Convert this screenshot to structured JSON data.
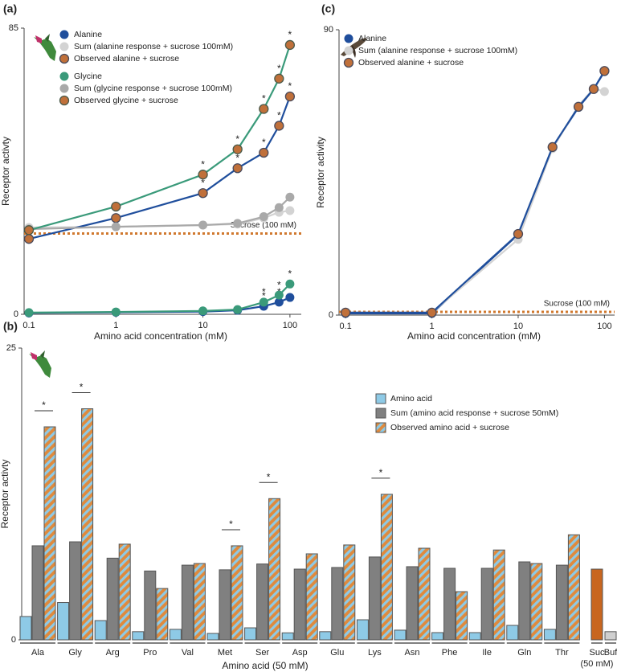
{
  "chart_data": [
    {
      "type": "line",
      "panel_label": "(a)",
      "x_label": "Amino acid concentration (mM)",
      "y_label": "Receptor activty",
      "xscale": "log",
      "xlim": [
        0.088,
        135
      ],
      "xticks": [
        0.1,
        1,
        10,
        100
      ],
      "ylim": [
        0,
        85
      ],
      "yticks": [
        0,
        85
      ],
      "x": [
        0.1,
        1,
        10,
        25,
        50,
        75,
        100
      ],
      "reference": {
        "value": 24,
        "label": "Sucrose (100 mM)",
        "color": "#d0782e"
      },
      "series": [
        {
          "name": "Alanine",
          "color": "#1f4e9c",
          "marker_color": "#1f4e9c",
          "values": [
            0.4,
            0.6,
            0.8,
            1.2,
            2.4,
            3.6,
            5.0
          ],
          "significance": [
            null,
            null,
            null,
            null,
            "*",
            "*",
            "*"
          ]
        },
        {
          "name": "Sum (alanine response + sucrose 100mM)",
          "color": "#d3d3d3",
          "marker_color": "#d3d3d3",
          "values": [
            25.8,
            26,
            26.5,
            26.8,
            28.6,
            30.3,
            30.8
          ]
        },
        {
          "name": "Observed alanine + sucrose",
          "color": "#1f4e9c",
          "marker_color": "#c0703a",
          "marker_edge": "#4a4a5a",
          "values": [
            22.4,
            28.6,
            36,
            43.4,
            48,
            56,
            64.7
          ],
          "significance": [
            null,
            null,
            "*",
            "*",
            "*",
            "*",
            "*"
          ]
        },
        {
          "name": "Glycine",
          "color": "#3a9a7a",
          "marker_color": "#3a9a7a",
          "values": [
            0.5,
            0.7,
            1,
            1.4,
            3.6,
            5.7,
            9
          ],
          "significance": [
            null,
            null,
            null,
            null,
            "*",
            "*",
            "*"
          ]
        },
        {
          "name": "Sum (glycine response + sucrose 100mM)",
          "color": "#a9a9a9",
          "marker_color": "#a9a9a9",
          "values": [
            25.3,
            26,
            26.5,
            27,
            29,
            31.7,
            34.8
          ]
        },
        {
          "name": "Observed glycine + sucrose",
          "color": "#3a9a7a",
          "marker_color": "#c0703a",
          "marker_edge": "#4a5a4a",
          "values": [
            25,
            32,
            41.5,
            49,
            61,
            70,
            80
          ],
          "significance": [
            null,
            null,
            "*",
            "*",
            "*",
            "*",
            "*"
          ]
        }
      ]
    },
    {
      "type": "line",
      "panel_label": "(c)",
      "x_label": "Amino acid concentration (mM)",
      "y_label": "Receptor activity",
      "xscale": "log",
      "xlim": [
        0.084,
        131
      ],
      "xticks": [
        0.1,
        1,
        10,
        100
      ],
      "ylim": [
        0,
        90
      ],
      "yticks": [
        0,
        90
      ],
      "x": [
        0.1,
        1,
        10,
        25,
        50,
        75,
        100
      ],
      "reference": {
        "value": 1,
        "label": "Sucrose (100 mM)",
        "color": "#d0782e"
      },
      "series": [
        {
          "name": "Alanine",
          "color": "#1f4e9c",
          "marker_color": "#1f4e9c",
          "values": [
            0.5,
            0.5,
            25.4,
            53,
            65.5,
            71.3,
            76.8
          ]
        },
        {
          "name": "Sum (alanine response + sucrose 100mM)",
          "color": "#d3d3d3",
          "marker_color": "#d3d3d3",
          "values": [
            0.8,
            0.8,
            23.9,
            52.5,
            66,
            71.5,
            70.5
          ]
        },
        {
          "name": "Observed alanine + sucrose",
          "color": "#1f4e9c",
          "marker_color": "#c0703a",
          "marker_edge": "#4a4a5a",
          "values": [
            0.8,
            0.8,
            25.6,
            53,
            65.7,
            71.3,
            77
          ]
        }
      ]
    },
    {
      "type": "bar",
      "panel_label": "(b)",
      "x_label": "Amino acid (50 mM)",
      "y_label": "Receptor activty",
      "ylim": [
        0,
        25
      ],
      "yticks": [
        0,
        25
      ],
      "categories": [
        "Ala",
        "Gly",
        "Arg",
        "Pro",
        "Val",
        "Met",
        "Ser",
        "Asp",
        "Glu",
        "Lys",
        "Asn",
        "Phe",
        "Ile",
        "Gln",
        "Thr"
      ],
      "series": [
        {
          "name": "Amino acid",
          "color": "#8ecae6",
          "values": [
            2.0,
            3.2,
            1.65,
            0.7,
            0.9,
            0.55,
            1.03,
            0.6,
            0.7,
            1.72,
            0.83,
            0.62,
            0.62,
            1.24,
            0.9
          ]
        },
        {
          "name": "Sum (amino acid response + sucrose 50mM)",
          "color": "#808080",
          "values": [
            8.06,
            8.4,
            7.0,
            5.9,
            6.4,
            6.0,
            6.5,
            6.06,
            6.2,
            7.1,
            6.27,
            6.13,
            6.13,
            6.68,
            6.4
          ]
        },
        {
          "name": "Observed amino acid + sucrose",
          "color": "#e08a3c",
          "hatch_color": "#8ecae6",
          "values": [
            18.25,
            19.8,
            8.2,
            4.4,
            6.54,
            8.06,
            12.1,
            7.37,
            8.13,
            12.47,
            7.85,
            4.13,
            7.7,
            6.54,
            9.0
          ],
          "significance": [
            "*",
            "*",
            null,
            null,
            null,
            "*",
            "*",
            null,
            null,
            "*",
            null,
            null,
            null,
            null,
            null
          ]
        }
      ],
      "controls": {
        "categories": [
          "Suc",
          "Buf"
        ],
        "values": [
          6.06,
          0.7
        ],
        "colors": [
          "#c8661f",
          "#cfcfcf"
        ],
        "note": "(50 mM)"
      }
    }
  ]
}
